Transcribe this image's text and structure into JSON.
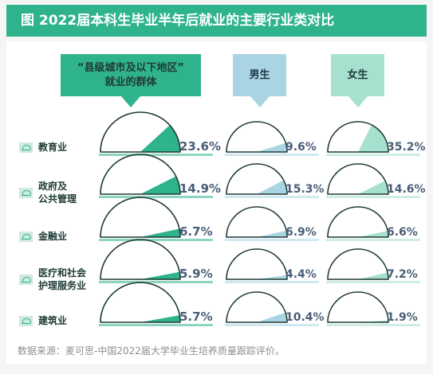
{
  "title": "图  2022届本科生毕业半年后就业的主要行业类对比",
  "headers": [
    "“县级城市及以下地区”\n就业的群体",
    "男生",
    "女生"
  ],
  "footer": "数据来源：麦可思-中国2022届大学毕业生培养质量跟踪评价。",
  "colors": {
    "county": "#2fb38d",
    "male": "#a9d5e3",
    "female": "#a6e0cf",
    "base": "#cfe8e1"
  },
  "chart_data": {
    "type": "gauge",
    "categories": [
      "教育业",
      "政府及\n公共管理",
      "金融业",
      "医疗和社会\n护理服务业",
      "建筑业"
    ],
    "series": [
      {
        "name": "“县级城市及以下地区”就业的群体",
        "values": [
          23.6,
          14.9,
          6.7,
          5.9,
          5.7
        ],
        "labels": [
          "23.6%",
          "14.9%",
          "6.7%",
          "5.9%",
          "5.7%"
        ]
      },
      {
        "name": "男生",
        "values": [
          9.6,
          15.3,
          6.9,
          4.4,
          10.4
        ],
        "labels": [
          "9.6%",
          "15.3%",
          "6.9%",
          "4.4%",
          "10.4%"
        ]
      },
      {
        "name": "女生",
        "values": [
          35.2,
          14.6,
          6.6,
          7.2,
          1.9
        ],
        "labels": [
          "35.2%",
          "14.6%",
          "6.6%",
          "7.2%",
          "1.9%"
        ]
      }
    ]
  }
}
